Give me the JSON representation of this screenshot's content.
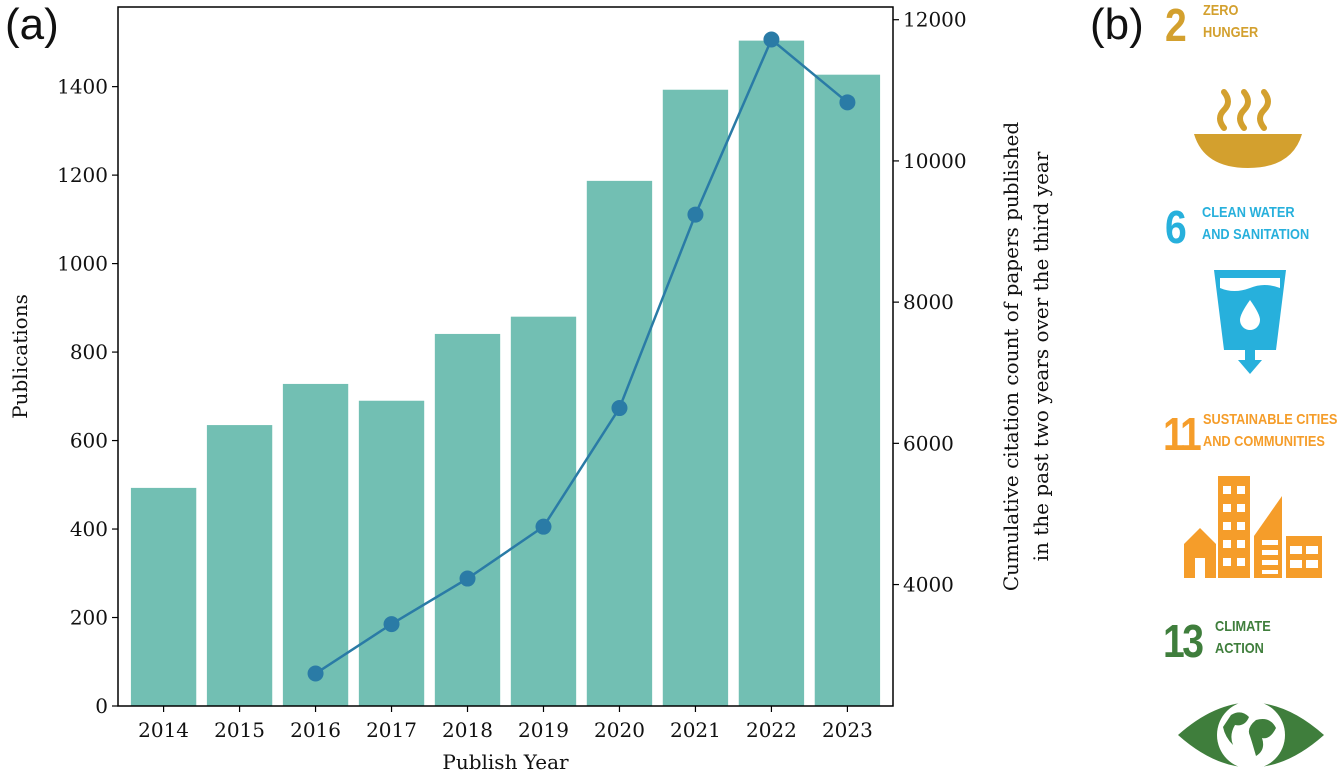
{
  "chart_data": {
    "type": "bar+line",
    "panel_label": "(a)",
    "xlabel": "Publish Year",
    "ylabel": "Publications",
    "ylabel_right": [
      "Cumulative citation count of papers published",
      "in the past two years over the third year"
    ],
    "categories": [
      "2014",
      "2015",
      "2016",
      "2017",
      "2018",
      "2019",
      "2020",
      "2021",
      "2022",
      "2023"
    ],
    "bars": {
      "values": [
        493,
        635,
        728,
        690,
        841,
        880,
        1187,
        1393,
        1504,
        1427
      ],
      "color": "#72bfb3"
    },
    "line": {
      "x": [
        "2016",
        "2017",
        "2018",
        "2019",
        "2020",
        "2021",
        "2022",
        "2023"
      ],
      "values": [
        2740,
        3440,
        4085,
        4820,
        6500,
        9240,
        11720,
        10830
      ],
      "color": "#2a7ba6"
    },
    "ylim": [
      0,
      1580
    ],
    "ylim_right": [
      2280,
      12180
    ],
    "yticks": [
      0,
      200,
      400,
      600,
      800,
      1000,
      1200,
      1400
    ],
    "yticks_right": [
      4000,
      6000,
      8000,
      10000,
      12000
    ],
    "grid": false
  },
  "panel_b": {
    "label": "(b)",
    "goals": [
      {
        "number": "2",
        "lines": [
          "ZERO",
          "HUNGER"
        ],
        "color": "#d3a02e",
        "icon": "bowl-icon"
      },
      {
        "number": "6",
        "lines": [
          "CLEAN WATER",
          "AND SANITATION"
        ],
        "color": "#27b0dc",
        "icon": "water-glass-icon"
      },
      {
        "number": "11",
        "lines": [
          "SUSTAINABLE CITIES",
          "AND COMMUNITIES"
        ],
        "color": "#f59d2a",
        "icon": "city-buildings-icon"
      },
      {
        "number": "13",
        "lines": [
          "CLIMATE",
          "ACTION"
        ],
        "color": "#3f7e3c",
        "icon": "earth-eye-icon"
      }
    ]
  }
}
